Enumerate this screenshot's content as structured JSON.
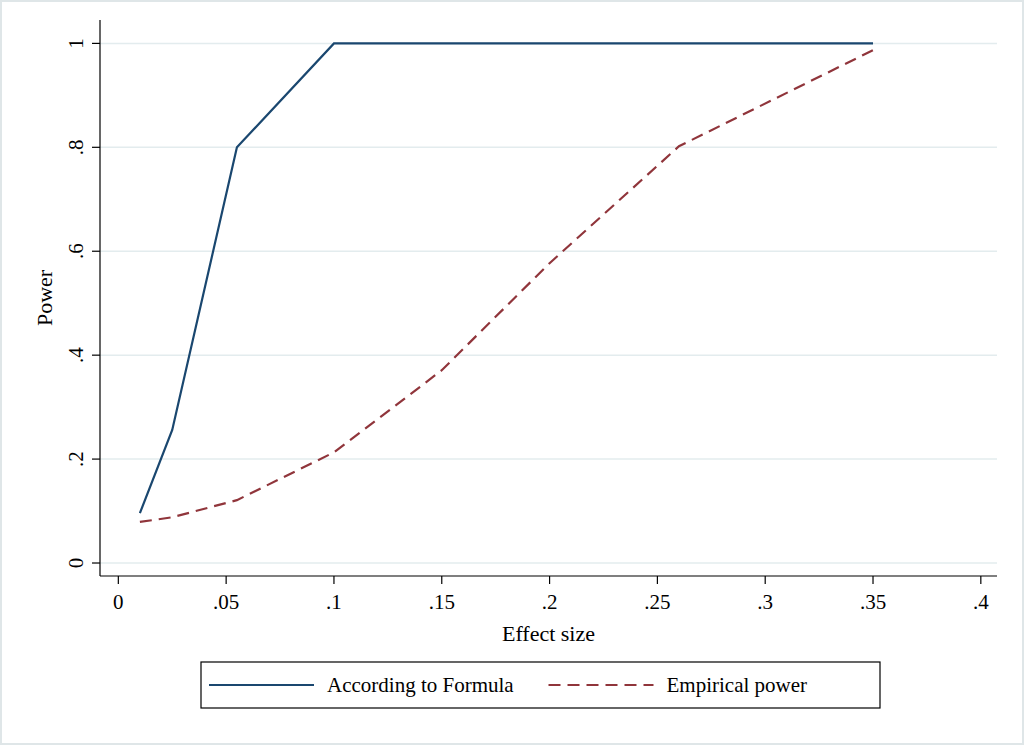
{
  "chart_data": {
    "type": "line",
    "x_label": "Effect size",
    "y_label": "Power",
    "xlim": [
      -0.0085,
      0.4075
    ],
    "ylim": [
      -0.025,
      1.045
    ],
    "xticks": [
      0,
      {
        "value": 0.05,
        "label": ".05"
      },
      {
        "value": 0.1,
        "label": ".1"
      },
      {
        "value": 0.15,
        "label": ".15"
      },
      {
        "value": 0.2,
        "label": ".2"
      },
      {
        "value": 0.25,
        "label": ".25"
      },
      {
        "value": 0.3,
        "label": ".3"
      },
      {
        "value": 0.35,
        "label": ".35"
      },
      {
        "value": 0.4,
        "label": ".4"
      }
    ],
    "yticks": [
      0,
      {
        "value": 0.2,
        "label": ".2"
      },
      {
        "value": 0.4,
        "label": ".4"
      },
      {
        "value": 0.6,
        "label": ".6"
      },
      {
        "value": 0.8,
        "label": ".8"
      },
      1
    ],
    "grid": true,
    "legend": "bottom",
    "series": [
      {
        "name": "According to Formula",
        "color": "#1a476f",
        "line_style": "solid",
        "x": [
          0.01,
          0.025,
          0.055,
          0.1,
          0.35
        ],
        "values": [
          0.096,
          0.256,
          0.8,
          1,
          1
        ]
      },
      {
        "name": "Empirical power",
        "color": "#90353b",
        "line_style": "dashed",
        "x": [
          0.01,
          0.025,
          0.055,
          0.1,
          0.15,
          0.2,
          0.26,
          0.35
        ],
        "values": [
          0.079,
          0.088,
          0.121,
          0.213,
          0.371,
          0.577,
          0.802,
          0.987
        ]
      }
    ]
  }
}
